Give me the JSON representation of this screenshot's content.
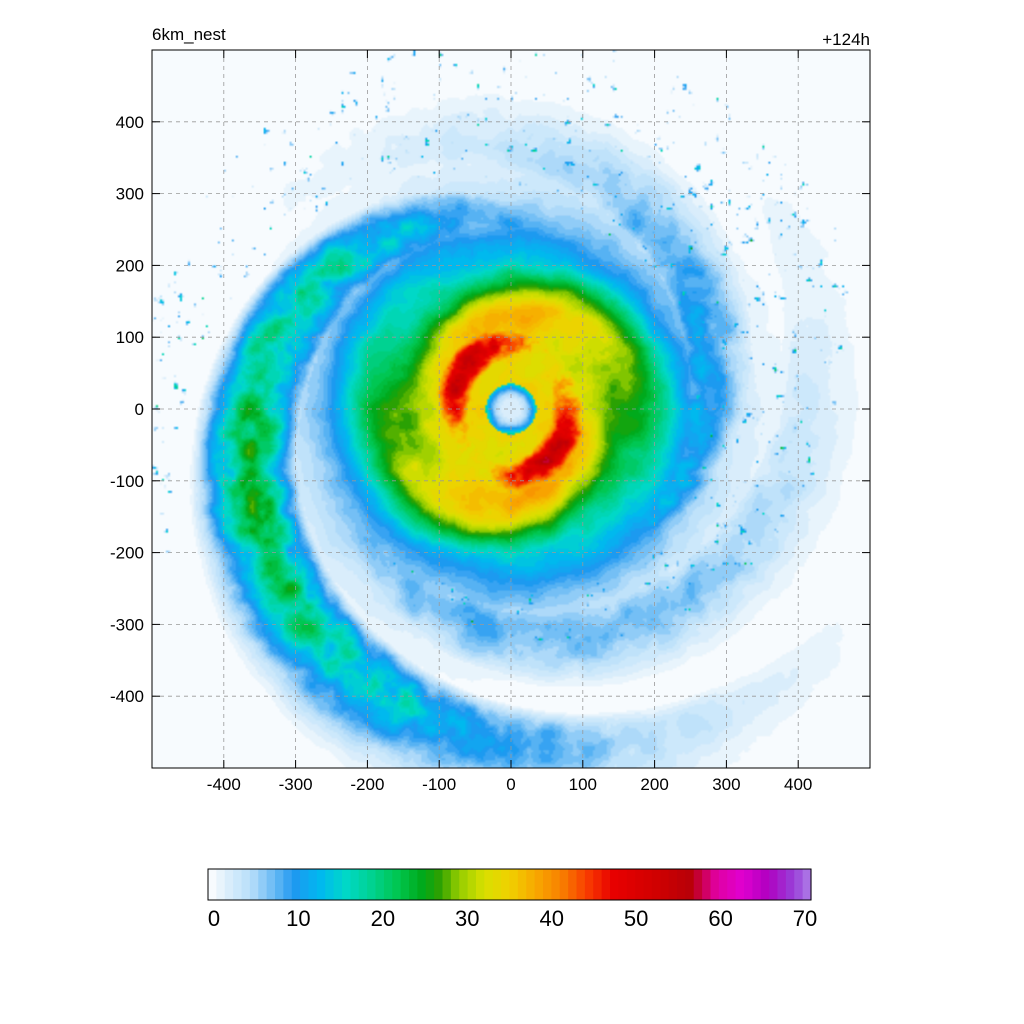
{
  "chart_data": {
    "type": "heatmap",
    "title_left": "6km_nest",
    "title_right": "+124h",
    "xlabel": "",
    "ylabel": "",
    "xlim": [
      -500,
      500
    ],
    "ylim": [
      -500,
      500
    ],
    "x_ticks": [
      -400,
      -300,
      -200,
      -100,
      0,
      100,
      200,
      300,
      400
    ],
    "y_ticks": [
      400,
      300,
      200,
      100,
      0,
      -100,
      -200,
      -300,
      -400
    ],
    "grid": true,
    "grid_style": "dashed",
    "colorbar": {
      "orientation": "horizontal",
      "placement": "bottom",
      "min": 0,
      "max": 70,
      "ticks": [
        0,
        10,
        20,
        30,
        40,
        50,
        60,
        70
      ],
      "levels": 72
    },
    "field": {
      "eye_radius": 35,
      "max_value": 55,
      "max_radius": 85,
      "outer_core_radius": 270,
      "spiral_bands": 3,
      "band_values": [
        12,
        8,
        22
      ],
      "structure": "concentric eyewall with spiral rainbands"
    }
  }
}
